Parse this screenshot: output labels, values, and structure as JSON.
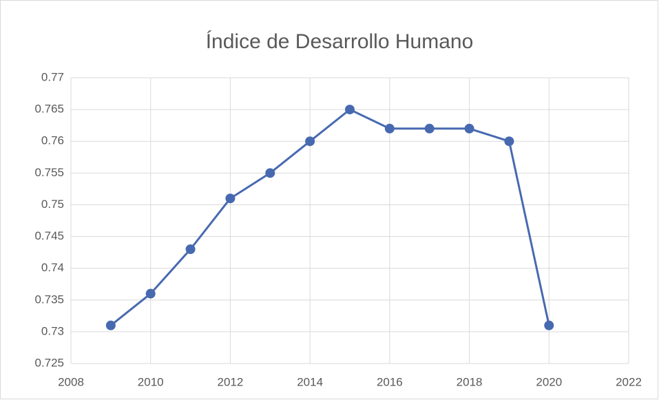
{
  "chart_data": {
    "type": "line",
    "title": "Índice de Desarrollo Humano",
    "x": [
      2009,
      2010,
      2011,
      2012,
      2013,
      2014,
      2015,
      2016,
      2017,
      2018,
      2019,
      2020
    ],
    "series": [
      {
        "name": "Índice de Desarrollo Humano",
        "color": "#4769b0",
        "values": [
          0.731,
          0.736,
          0.743,
          0.751,
          0.755,
          0.76,
          0.765,
          0.762,
          0.762,
          0.762,
          0.76,
          0.731
        ]
      }
    ],
    "xlim": [
      2008,
      2022
    ],
    "xticks": [
      2008,
      2010,
      2012,
      2014,
      2016,
      2018,
      2020,
      2022
    ],
    "ylim": [
      0.725,
      0.77
    ],
    "yticks": [
      0.725,
      0.73,
      0.735,
      0.74,
      0.745,
      0.75,
      0.755,
      0.76,
      0.765,
      0.77
    ],
    "grid": true
  }
}
